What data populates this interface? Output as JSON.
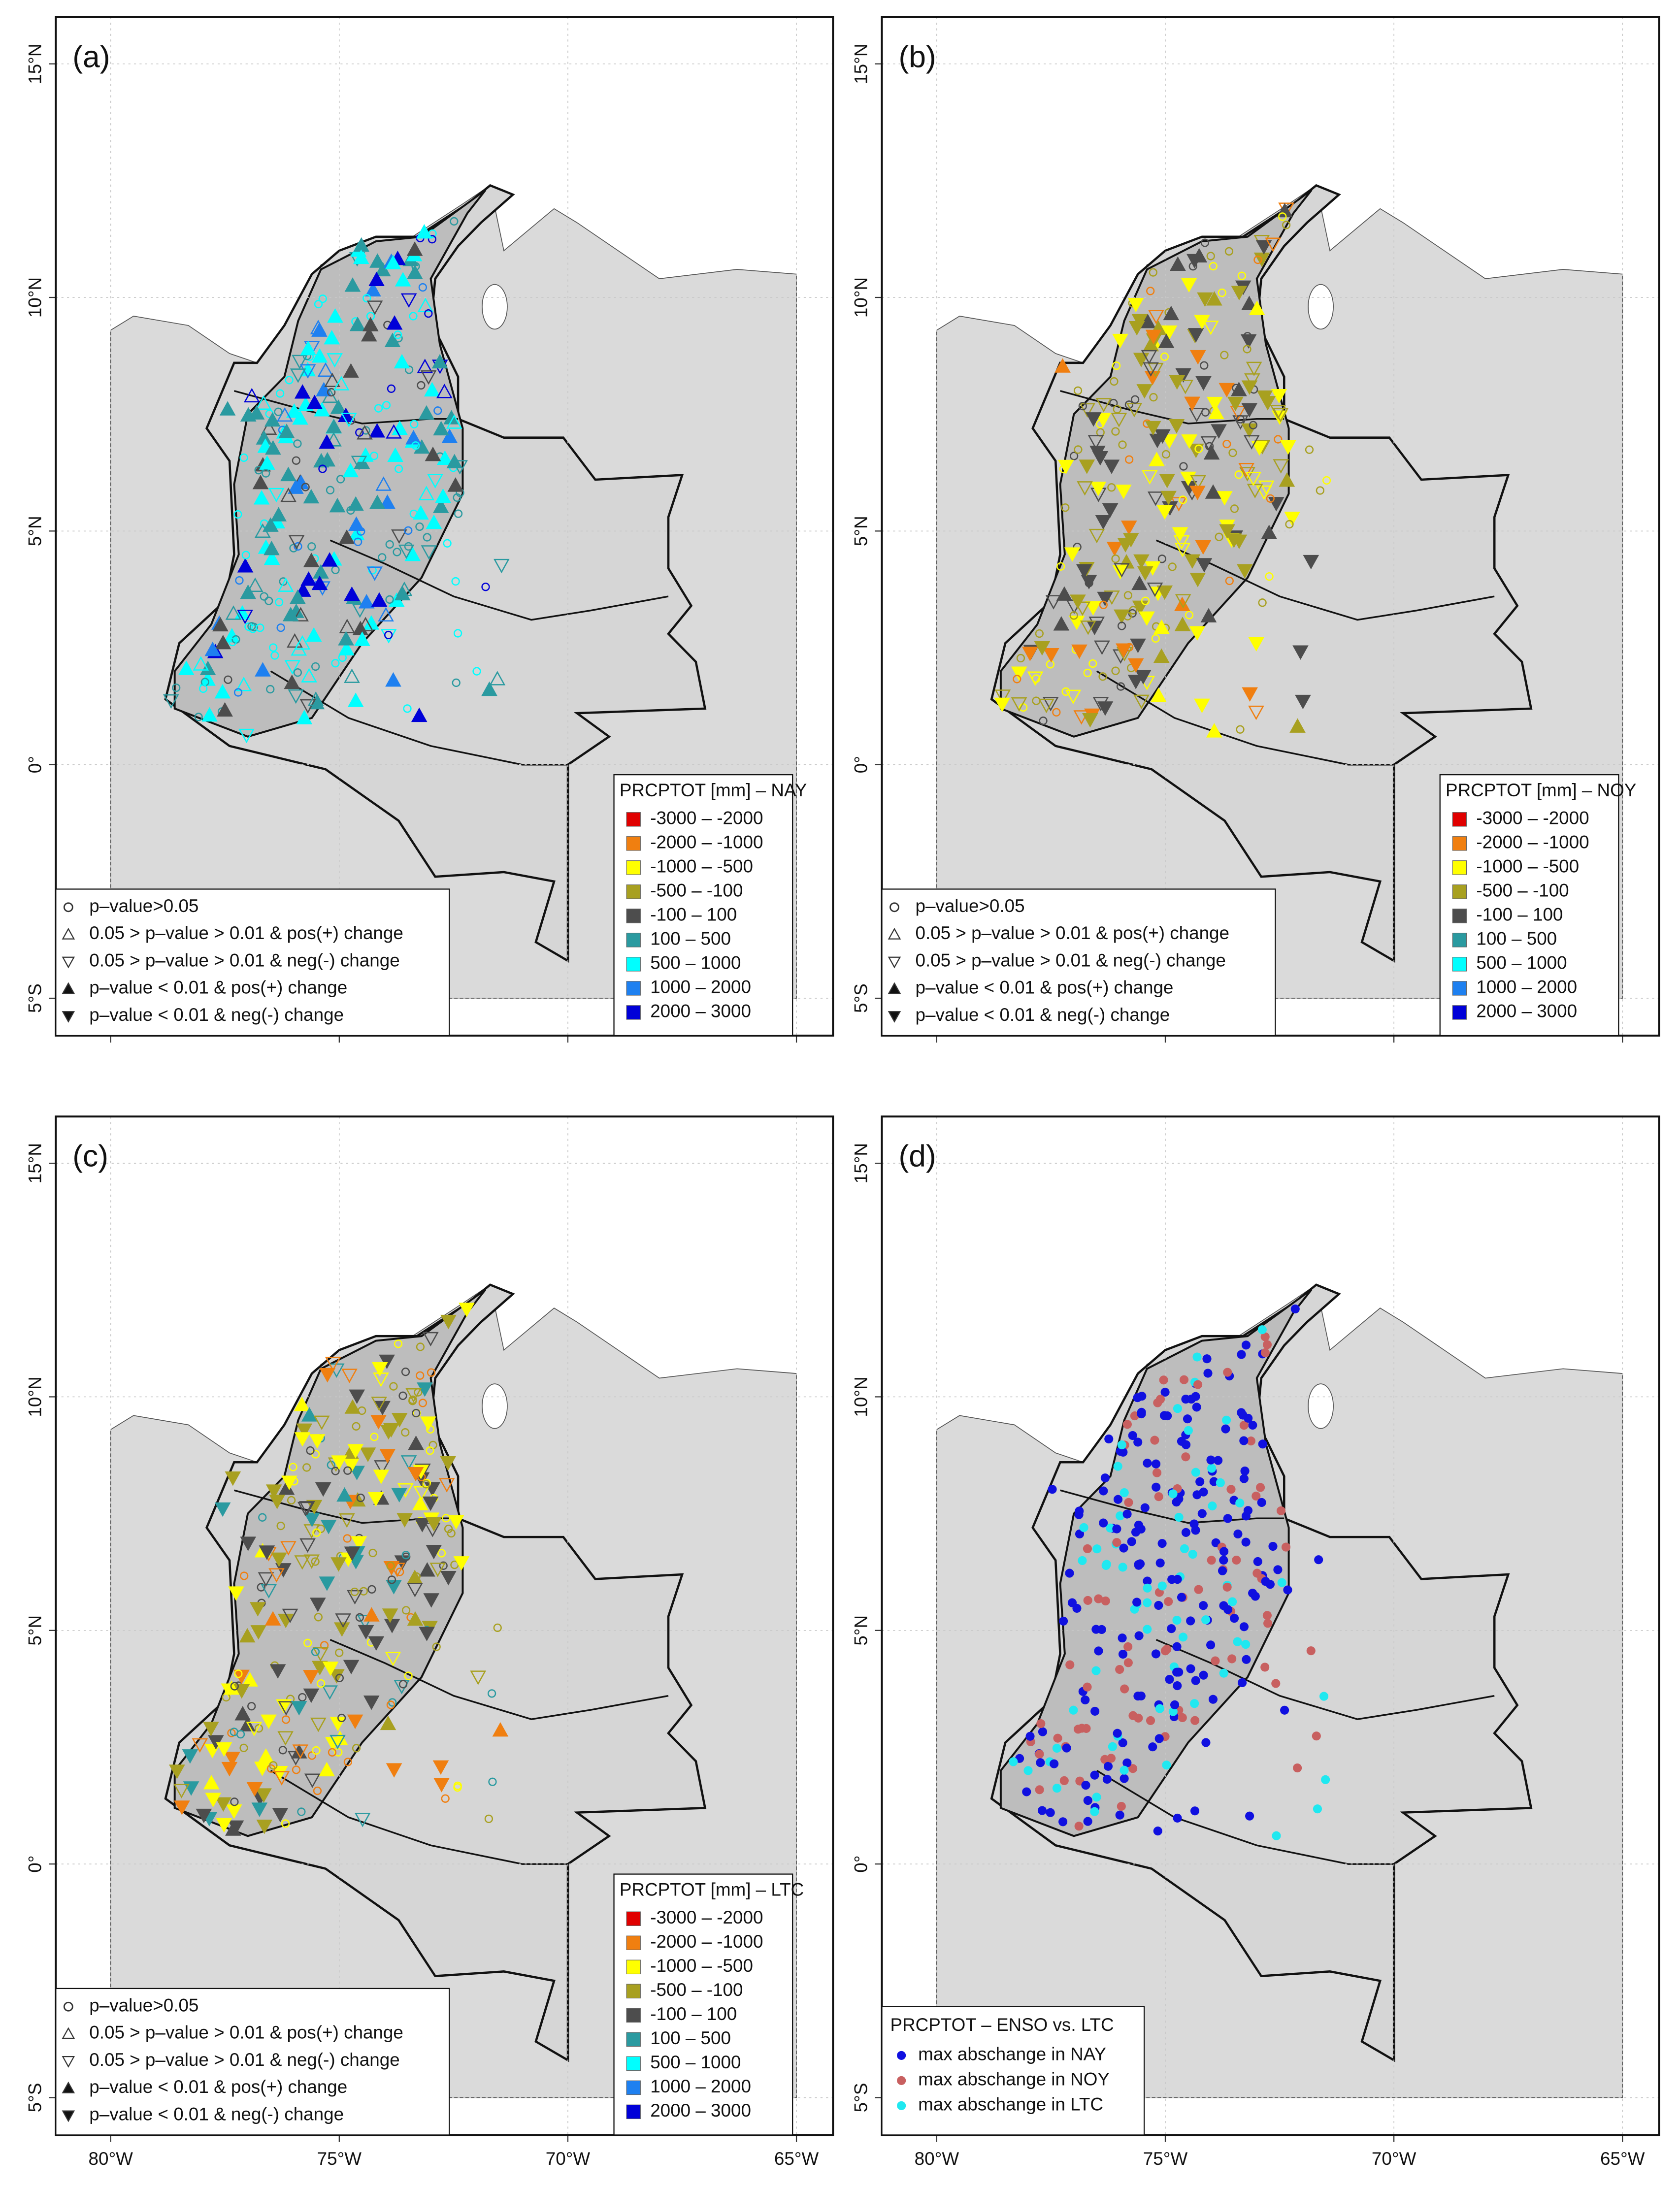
{
  "xlim": [
    -81.2,
    -64.2
  ],
  "ylim": [
    -5.8,
    16
  ],
  "xticks": [
    {
      "value": -80,
      "label": "80°W"
    },
    {
      "value": -75,
      "label": "75°W"
    },
    {
      "value": -70,
      "label": "70°W"
    },
    {
      "value": -65,
      "label": "65°W"
    }
  ],
  "yticks": [
    {
      "value": 15,
      "label": "15°N"
    },
    {
      "value": 10,
      "label": "10°N"
    },
    {
      "value": 5,
      "label": "5°N"
    },
    {
      "value": 0,
      "label": "0°"
    },
    {
      "value": -5,
      "label": "5°S"
    }
  ],
  "grid": true,
  "significance_legend": [
    "p–value>0.05",
    "0.05 > p–value > 0.01 & pos(+) change",
    "0.05 > p–value > 0.01 & neg(-) change",
    "p–value < 0.01 & pos(+) change",
    "p–value < 0.01 & neg(-) change"
  ],
  "class_legend": {
    "labels": [
      "-3000 – -2000",
      "-2000 – -1000",
      "-1000 – -500",
      "-500 – -100",
      "-100 – 100",
      "100 – 500",
      "500 – 1000",
      "1000 – 2000",
      "2000 – 3000"
    ],
    "colors": [
      "#e00000",
      "#f07f10",
      "#ffff00",
      "#a8a020",
      "#4d4d4d",
      "#2a9aa0",
      "#00ffff",
      "#1e80f0",
      "#0000d8"
    ]
  },
  "panels": [
    {
      "label": "(a)",
      "legend_title": "PRCPTOT [mm] – NAY"
    },
    {
      "label": "(b)",
      "legend_title": "PRCPTOT [mm] – NOY"
    },
    {
      "label": "(c)",
      "legend_title": "PRCPTOT [mm] – LTC"
    },
    {
      "label": "(d)",
      "legend_title": "PRCPTOT – ENSO vs. LTC",
      "items": [
        {
          "label": "max abschange in NAY",
          "color": "#1010e0"
        },
        {
          "label": "max abschange in NOY",
          "color": "#c86060"
        },
        {
          "label": "max abschange in LTC",
          "color": "#20e8f0"
        }
      ]
    }
  ]
}
